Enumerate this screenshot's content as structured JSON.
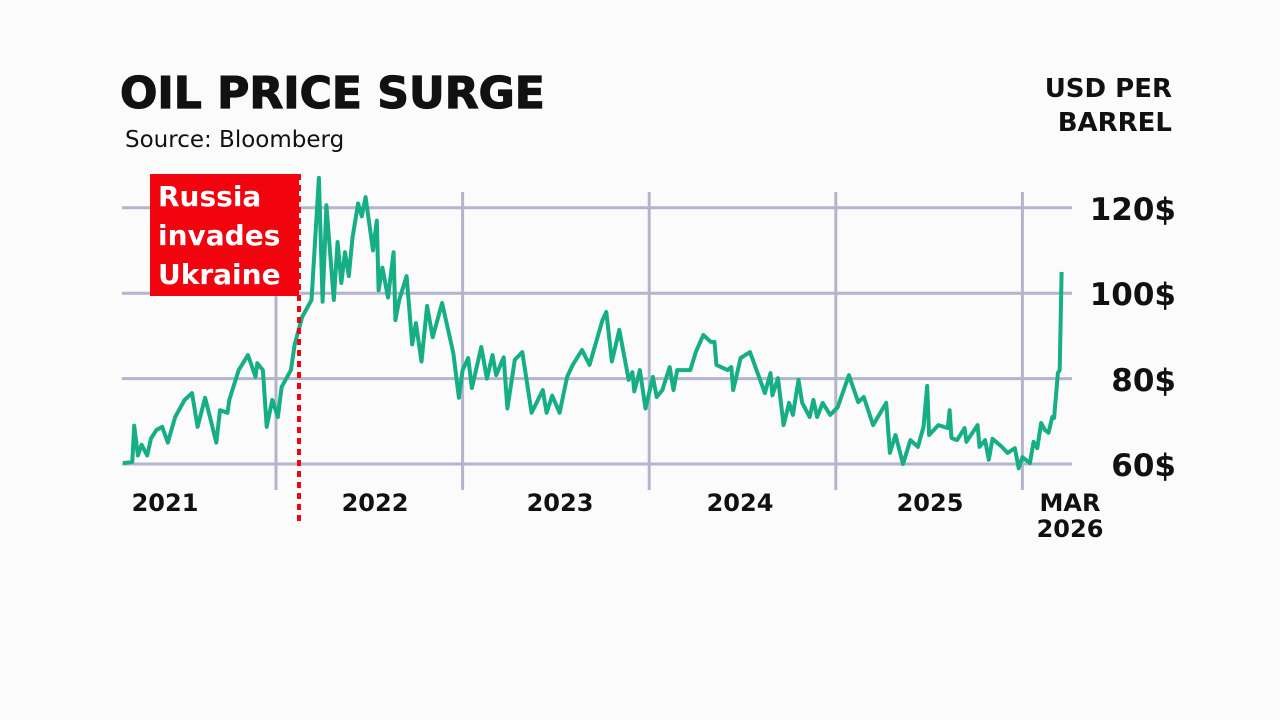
{
  "chart_data": {
    "type": "line",
    "title": "OIL PRICE SURGE",
    "subtitle": "Source: Bloomberg",
    "ylabel": "USD PER\nBARREL",
    "xlabel": "",
    "ylim": [
      60,
      127
    ],
    "yticks": [
      60,
      80,
      100,
      120
    ],
    "ytick_labels": [
      "60$",
      "80$",
      "100$",
      "120$"
    ],
    "xtick_labels": [
      "2021",
      "2022",
      "2023",
      "2024",
      "2025",
      "MAR\n2026"
    ],
    "x_gridlines": [
      2022,
      2023,
      2024,
      2025,
      2026
    ],
    "grid": true,
    "line_color": "#16ae85",
    "grid_color": "#b4b4cc",
    "annotation": {
      "label": "Russia\ninvades\nUkraine",
      "x": 2022.15,
      "color": "#f2040f"
    },
    "x": [
      2021.18,
      2021.23,
      2021.24,
      2021.26,
      2021.28,
      2021.31,
      2021.33,
      2021.36,
      2021.39,
      2021.42,
      2021.46,
      2021.51,
      2021.55,
      2021.58,
      2021.62,
      2021.65,
      2021.68,
      2021.7,
      2021.74,
      2021.75,
      2021.8,
      2021.85,
      2021.89,
      2021.9,
      2021.93,
      2021.95,
      2021.98,
      2022.01,
      2022.03,
      2022.08,
      2022.1,
      2022.14,
      2022.19,
      2022.23,
      2022.25,
      2022.27,
      2022.31,
      2022.33,
      2022.35,
      2022.37,
      2022.39,
      2022.41,
      2022.44,
      2022.46,
      2022.48,
      2022.52,
      2022.54,
      2022.55,
      2022.57,
      2022.6,
      2022.63,
      2022.64,
      2022.66,
      2022.7,
      2022.73,
      2022.75,
      2022.78,
      2022.81,
      2022.84,
      2022.89,
      2022.95,
      2022.98,
      2023.0,
      2023.03,
      2023.05,
      2023.1,
      2023.13,
      2023.16,
      2023.18,
      2023.22,
      2023.24,
      2023.28,
      2023.32,
      2023.37,
      2023.43,
      2023.45,
      2023.48,
      2023.52,
      2023.56,
      2023.59,
      2023.64,
      2023.68,
      2023.75,
      2023.77,
      2023.8,
      2023.84,
      2023.89,
      2023.91,
      2023.92,
      2023.95,
      2023.98,
      2024.02,
      2024.04,
      2024.07,
      2024.11,
      2024.13,
      2024.15,
      2024.22,
      2024.25,
      2024.29,
      2024.33,
      2024.35,
      2024.36,
      2024.42,
      2024.44,
      2024.45,
      2024.49,
      2024.54,
      2024.62,
      2024.65,
      2024.66,
      2024.69,
      2024.72,
      2024.75,
      2024.77,
      2024.8,
      2024.82,
      2024.86,
      2024.88,
      2024.9,
      2024.93,
      2024.97,
      2025.01,
      2025.07,
      2025.12,
      2025.15,
      2025.2,
      2025.27,
      2025.29,
      2025.32,
      2025.36,
      2025.4,
      2025.44,
      2025.47,
      2025.49,
      2025.5,
      2025.55,
      2025.6,
      2025.61,
      2025.62,
      2025.65,
      2025.69,
      2025.7,
      2025.76,
      2025.77,
      2025.8,
      2025.82,
      2025.84,
      2025.89,
      2025.92,
      2025.96,
      2025.98,
      2026.0,
      2026.04,
      2026.06,
      2026.08,
      2026.1,
      2026.12,
      2026.14,
      2026.16,
      2026.17,
      2026.19,
      2026.2,
      2026.21
    ],
    "series": [
      {
        "values": [
          60.2,
          60.5,
          69,
          62,
          64.5,
          62,
          66,
          68,
          68.7,
          65,
          71,
          75,
          76.6,
          68.7,
          75.5,
          70.3,
          65,
          72.6,
          72,
          75,
          82,
          85.5,
          80.4,
          83.6,
          82,
          68.7,
          75,
          71,
          78,
          82,
          88,
          94.4,
          98.4,
          127,
          98,
          120.6,
          98.4,
          112,
          102.4,
          109.6,
          104,
          113,
          121,
          118,
          122.5,
          110,
          117,
          100.7,
          106,
          99,
          109.6,
          93.7,
          98.4,
          104,
          88,
          93,
          84,
          97,
          89.7,
          97.7,
          86,
          75.5,
          82,
          84.8,
          77.8,
          87.4,
          80,
          85.5,
          80.8,
          85,
          73,
          84.4,
          86.2,
          72,
          77.3,
          72,
          76,
          72,
          80.4,
          83.2,
          86.7,
          83.2,
          93.7,
          95.6,
          84,
          91.4,
          79.7,
          81.5,
          77,
          82,
          73,
          80.4,
          75.7,
          77.3,
          82.7,
          77.3,
          82,
          82,
          86.2,
          90.2,
          88.6,
          88.6,
          83.2,
          82,
          82.7,
          77.3,
          84.8,
          86.2,
          76.6,
          81.3,
          76.1,
          80.1,
          69.1,
          74.3,
          71.5,
          79.7,
          74.3,
          71,
          75,
          71,
          74.3,
          71.5,
          73.3,
          80.8,
          74.5,
          75.7,
          69.1,
          74.3,
          62.6,
          66.8,
          60,
          65.6,
          64,
          68.7,
          78.3,
          66.8,
          69.1,
          68.4,
          72.6,
          66.1,
          65.6,
          68.4,
          65.2,
          69.1,
          64,
          65.6,
          61,
          65.9,
          64,
          62.6,
          63.7,
          59,
          61.6,
          60.2,
          65.2,
          63.7,
          69.6,
          68,
          67.3,
          71,
          70.8,
          81.3,
          82,
          105
        ]
      }
    ]
  }
}
